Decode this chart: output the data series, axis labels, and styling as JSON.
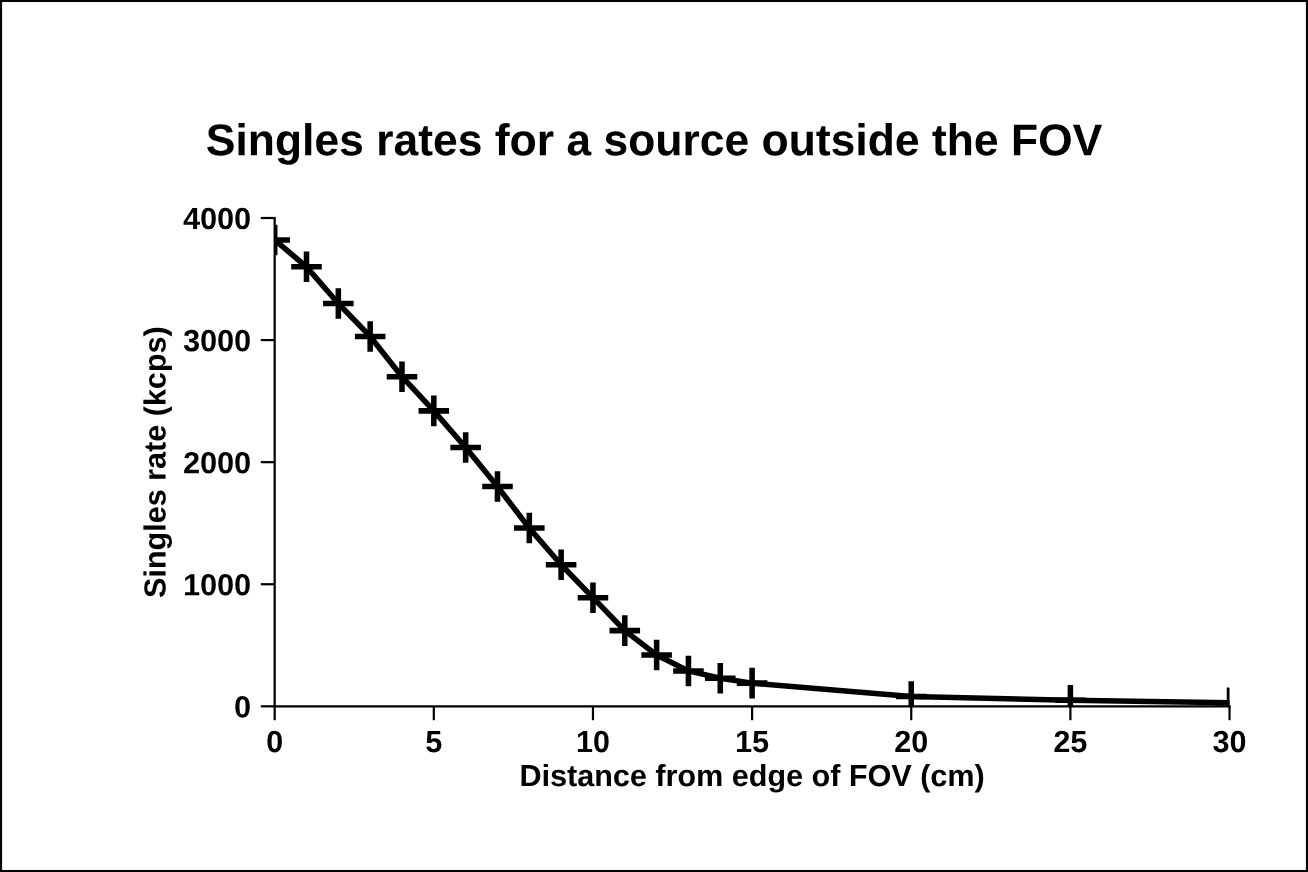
{
  "chart_data": {
    "type": "line",
    "title": "Singles rates for a source outside the FOV",
    "xlabel": "Distance from edge of FOV (cm)",
    "ylabel": "Singles rate (kcps)",
    "x": [
      0,
      1,
      2,
      3,
      4,
      5,
      6,
      7,
      8,
      9,
      10,
      11,
      12,
      13,
      14,
      15,
      20,
      25,
      30
    ],
    "values": [
      3820,
      3600,
      3300,
      3030,
      2700,
      2420,
      2120,
      1800,
      1460,
      1160,
      890,
      620,
      420,
      290,
      230,
      190,
      80,
      50,
      30
    ],
    "color": "#000000",
    "marker": "cross",
    "line_style": "solid",
    "xlim": [
      0,
      30
    ],
    "xticks": [
      0,
      5,
      10,
      15,
      20,
      25,
      30
    ],
    "ylim": [
      0,
      4000
    ],
    "yticks": [
      0,
      1000,
      2000,
      3000,
      4000
    ],
    "grid": false,
    "legend": false
  }
}
